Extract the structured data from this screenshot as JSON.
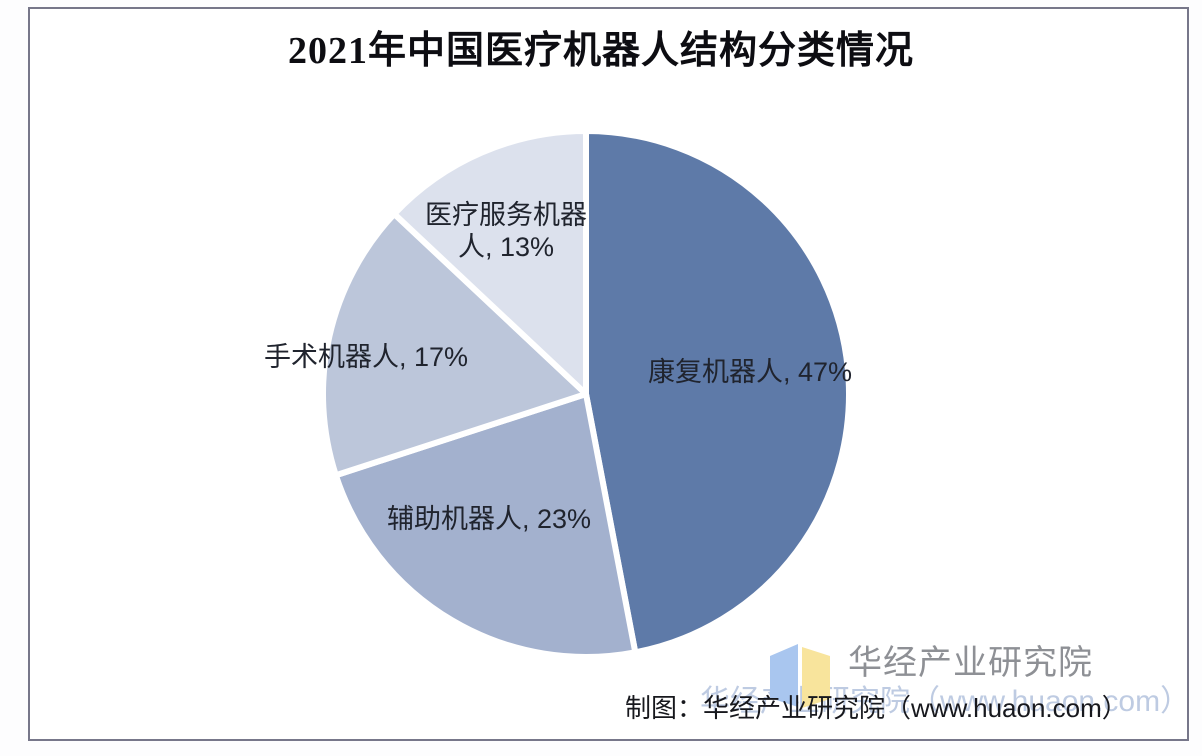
{
  "chart_data": {
    "type": "pie",
    "title": "2021年中国医疗机器人结构分类情况",
    "unit": "%",
    "start_angle_deg": 0,
    "direction": "clockwise",
    "legend_position": "none",
    "categories": [
      "康复机器人",
      "辅助机器人",
      "手术机器人",
      "医疗服务机器人"
    ],
    "values": [
      47,
      23,
      17,
      13
    ],
    "slices": [
      {
        "name": "康复机器人",
        "value": 47,
        "color": "#5e7aa8",
        "label": "康复机器人, 47%"
      },
      {
        "name": "辅助机器人",
        "value": 23,
        "color": "#a3b1ce",
        "label": "辅助机器人, 23%"
      },
      {
        "name": "手术机器人",
        "value": 17,
        "color": "#bcc6da",
        "label": "手术机器人, 17%"
      },
      {
        "name": "医疗服务机器人",
        "value": 13,
        "color": "#dce1ed",
        "label": "医疗服务机器\n人, 13%"
      }
    ],
    "slice_border_color": "#ffffff",
    "slice_border_width": 6
  },
  "footer": {
    "caption": "制图：华经产业研究院（www.huaon.com）",
    "logo_text": "华经产业研究院",
    "watermark": "华经产业研究院（www.huaon.com）",
    "logo_colors": {
      "left_page": "#a9c6ef",
      "right_page": "#f8e49c"
    }
  }
}
